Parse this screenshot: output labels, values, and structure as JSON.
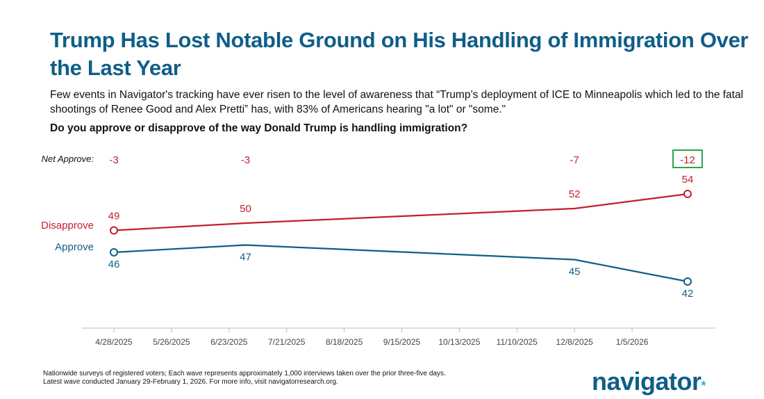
{
  "title": "Trump Has Lost Notable Ground on His Handling of Immigration Over the Last Year",
  "subtitle": "Few events in Navigator's tracking have ever risen to the level of awareness that “Trump’s deployment of ICE to Minneapolis which led to the fatal shootings of Renee Good and Alex Pretti” has, with 83% of Americans hearing \"a lot\" or \"some.\"",
  "question": "Do you approve or disapprove of the way Donald Trump is handling immigration?",
  "footnote_line1": "Nationwide surveys of registered voters; Each wave represents approximately 1,000 interviews taken over the prior three-five days.",
  "footnote_line2": "Latest wave conducted January 29-February 1, 2026. For more info, visit navigatorresearch.org.",
  "brand": {
    "name": "navigator",
    "dot": "*"
  },
  "colors": {
    "title": "#0f5e87",
    "approve": "#0f5e87",
    "disapprove": "#c41e2a",
    "highlight_box": "#2ea44f",
    "brand_accent": "#2ab3e0"
  },
  "chart_data": {
    "type": "line",
    "net_label": "Net Approve:",
    "x_ticks": [
      "4/28/2025",
      "5/26/2025",
      "6/23/2025",
      "7/21/2025",
      "8/18/2025",
      "9/15/2025",
      "10/13/2025",
      "11/10/2025",
      "12/8/2025",
      "1/5/2026"
    ],
    "x": [
      "2025-04-28",
      "2025-07-01",
      "2025-12-08",
      "2026-02-01"
    ],
    "series": [
      {
        "name": "Disapprove",
        "values": [
          49,
          50,
          52,
          54
        ],
        "color": "#c41e2a"
      },
      {
        "name": "Approve",
        "values": [
          46,
          47,
          45,
          42
        ],
        "color": "#0f5e87"
      }
    ],
    "net_approve": [
      "-3",
      "-3",
      "-7",
      "-12"
    ],
    "highlight_last_net": true,
    "grid": false
  }
}
